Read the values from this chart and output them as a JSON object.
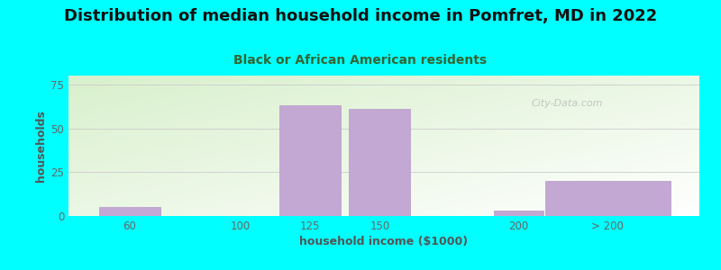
{
  "title": "Distribution of median household income in Pomfret, MD in 2022",
  "subtitle": "Black or African American residents",
  "xlabel": "household income ($1000)",
  "ylabel": "households",
  "background_color": "#00ffff",
  "bar_color": "#c4a8d4",
  "bar_edge_color": "#b898c8",
  "categories": [
    "60",
    "100",
    "125",
    "150",
    "200",
    "> 200"
  ],
  "values": [
    5,
    0,
    63,
    61,
    3,
    20
  ],
  "ylim": [
    0,
    80
  ],
  "yticks": [
    0,
    25,
    50,
    75
  ],
  "title_fontsize": 13,
  "subtitle_fontsize": 10,
  "axis_label_fontsize": 9,
  "tick_fontsize": 8.5,
  "title_color": "#111111",
  "subtitle_color": "#336633",
  "axis_label_color": "#555555",
  "tick_color": "#666666",
  "watermark_text": "City-Data.com",
  "plot_bg_top_left": "#d8f0cc",
  "plot_bg_bottom_right": "#ffffff",
  "x_positions": [
    60,
    100,
    125,
    150,
    200,
    232
  ],
  "bar_widths": [
    22,
    18,
    22,
    22,
    18,
    45
  ],
  "xlim": [
    38,
    265
  ],
  "grid_color": "#cccccc",
  "grid_linewidth": 0.6
}
